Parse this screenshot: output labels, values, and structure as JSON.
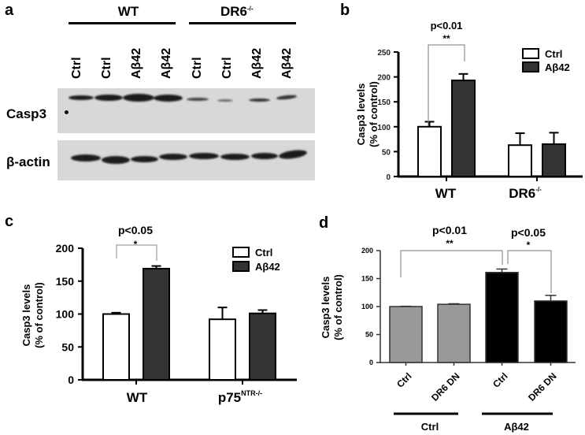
{
  "panel_a": {
    "letter": "a",
    "groups": [
      {
        "label": "WT"
      },
      {
        "label": "DR6",
        "sup": "-/-"
      }
    ],
    "lanes": [
      "Ctrl",
      "Ctrl",
      "Aβ42",
      "Aβ42",
      "Ctrl",
      "Ctrl",
      "Aβ42",
      "Aβ42"
    ],
    "rows": [
      {
        "label": "Casp3"
      },
      {
        "label": "β-actin"
      }
    ]
  },
  "panel_b": {
    "letter": "b"
  },
  "panel_c": {
    "letter": "c"
  },
  "panel_d": {
    "letter": "d"
  },
  "chart_data": [
    {
      "panel": "b",
      "type": "bar",
      "categories": [
        "WT",
        "DR6-/-"
      ],
      "series": [
        {
          "name": "Ctrl",
          "values": [
            100,
            63
          ],
          "errors": [
            10,
            24
          ],
          "color": "#ffffff"
        },
        {
          "name": "Aβ42",
          "values": [
            193,
            65
          ],
          "errors": [
            13,
            23
          ],
          "color": "#333333"
        }
      ],
      "ylabel": "Casp3 levels (% of control)",
      "yticks": [
        0,
        50,
        100,
        150,
        200,
        250
      ],
      "ylim": [
        0,
        250
      ],
      "legend": [
        "Ctrl",
        "Aβ42"
      ],
      "legend_position": "top-right",
      "annotations": [
        {
          "text": "p<0.01",
          "stars": "**",
          "between": [
            "WT Ctrl",
            "WT Aβ42"
          ]
        }
      ]
    },
    {
      "panel": "c",
      "type": "bar",
      "categories": [
        "WT",
        "p75NTR-/-"
      ],
      "series": [
        {
          "name": "Ctrl",
          "values": [
            100,
            92
          ],
          "errors": [
            2,
            18
          ],
          "color": "#ffffff"
        },
        {
          "name": "Aβ42",
          "values": [
            169,
            101
          ],
          "errors": [
            4,
            5
          ],
          "color": "#333333"
        }
      ],
      "ylabel": "Casp3 levels (% of control)",
      "yticks": [
        0,
        50,
        100,
        150,
        200
      ],
      "ylim": [
        0,
        200
      ],
      "legend": [
        "Ctrl",
        "Aβ42"
      ],
      "legend_position": "top-right",
      "annotations": [
        {
          "text": "p<0.05",
          "stars": "*",
          "between": [
            "WT Ctrl",
            "WT Aβ42"
          ]
        }
      ]
    },
    {
      "panel": "d",
      "type": "bar",
      "categories": [
        "Ctrl",
        "DR6 DN",
        "Ctrl",
        "DR6 DN"
      ],
      "groups": [
        {
          "label": "Ctrl",
          "bars": [
            0,
            1
          ]
        },
        {
          "label": "Aβ42",
          "bars": [
            2,
            3
          ]
        }
      ],
      "values": [
        100,
        104,
        161,
        110
      ],
      "errors": [
        0.5,
        1,
        6,
        10
      ],
      "colors": [
        "#999999",
        "#999999",
        "#000000",
        "#000000"
      ],
      "ylabel": "Casp3 levels (% of control)",
      "yticks": [
        0,
        50,
        100,
        150,
        200
      ],
      "ylim": [
        0,
        200
      ],
      "annotations": [
        {
          "text": "p<0.01",
          "stars": "**",
          "between": [
            "Ctrl/Ctrl",
            "Aβ42/Ctrl"
          ]
        },
        {
          "text": "p<0.05",
          "stars": "*",
          "between": [
            "Aβ42/Ctrl",
            "Aβ42/DR6 DN"
          ]
        }
      ]
    }
  ]
}
